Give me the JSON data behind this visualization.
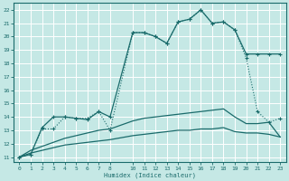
{
  "xlabel": "Humidex (Indice chaleur)",
  "bg_color": "#c5e8e5",
  "grid_color": "#ffffff",
  "line_color": "#1a6b6b",
  "xlim": [
    -0.5,
    23.5
  ],
  "ylim": [
    10.6,
    22.5
  ],
  "xticks": [
    0,
    1,
    2,
    3,
    4,
    5,
    6,
    7,
    8,
    10,
    11,
    12,
    13,
    14,
    15,
    16,
    17,
    18,
    19,
    20,
    21,
    22,
    23
  ],
  "yticks": [
    11,
    12,
    13,
    14,
    15,
    16,
    17,
    18,
    19,
    20,
    21,
    22
  ],
  "line1_x": [
    0,
    1,
    2,
    3,
    4,
    5,
    6,
    7,
    8,
    10,
    11,
    12,
    13,
    14,
    15,
    16,
    17,
    18,
    19,
    20,
    21,
    22,
    23
  ],
  "line1_y": [
    11.0,
    11.2,
    13.2,
    14.0,
    14.0,
    13.9,
    13.8,
    14.4,
    14.0,
    20.3,
    20.3,
    20.0,
    19.5,
    21.1,
    21.3,
    22.0,
    21.0,
    21.1,
    20.5,
    18.7,
    18.7,
    18.7,
    18.7
  ],
  "line2_x": [
    0,
    1,
    2,
    3,
    4,
    5,
    6,
    7,
    8,
    10,
    11,
    12,
    13,
    14,
    15,
    16,
    17,
    18,
    19,
    20,
    21,
    22,
    23
  ],
  "line2_y": [
    11.0,
    11.2,
    13.1,
    13.1,
    14.0,
    13.9,
    13.9,
    14.4,
    13.0,
    20.3,
    20.3,
    20.0,
    19.5,
    21.1,
    21.3,
    22.0,
    21.0,
    21.1,
    20.5,
    18.4,
    14.4,
    13.6,
    13.9
  ],
  "line3_x": [
    0,
    1,
    2,
    3,
    4,
    5,
    6,
    7,
    8,
    10,
    11,
    12,
    13,
    14,
    15,
    16,
    17,
    18,
    19,
    20,
    21,
    22,
    23
  ],
  "line3_y": [
    11.0,
    11.5,
    11.8,
    12.1,
    12.4,
    12.6,
    12.8,
    13.0,
    13.1,
    13.7,
    13.9,
    14.0,
    14.1,
    14.2,
    14.3,
    14.4,
    14.5,
    14.6,
    14.0,
    13.5,
    13.5,
    13.6,
    12.5
  ],
  "line4_x": [
    0,
    1,
    2,
    3,
    4,
    5,
    6,
    7,
    8,
    10,
    11,
    12,
    13,
    14,
    15,
    16,
    17,
    18,
    19,
    20,
    21,
    22,
    23
  ],
  "line4_y": [
    11.0,
    11.3,
    11.5,
    11.7,
    11.9,
    12.0,
    12.1,
    12.2,
    12.3,
    12.6,
    12.7,
    12.8,
    12.9,
    13.0,
    13.0,
    13.1,
    13.1,
    13.2,
    12.9,
    12.8,
    12.8,
    12.7,
    12.5
  ]
}
